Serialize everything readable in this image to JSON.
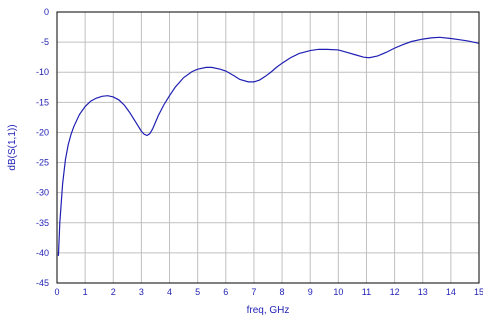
{
  "chart_data": {
    "type": "line",
    "title": "",
    "xlabel": "freq, GHz",
    "ylabel": "dB(S(1,1))",
    "xlim": [
      0,
      15
    ],
    "ylim": [
      -45,
      0
    ],
    "grid": true,
    "x_ticks": [
      "0",
      "1",
      "2",
      "3",
      "4",
      "5",
      "6",
      "7",
      "8",
      "9",
      "10",
      "11",
      "12",
      "13",
      "14",
      "15"
    ],
    "y_ticks": [
      "0",
      "-5",
      "-10",
      "-15",
      "-20",
      "-25",
      "-30",
      "-35",
      "-40",
      "-45"
    ],
    "colors": {
      "line": "#1f1fb4",
      "text": "#1f1fb4",
      "grid": "#c0c0c0",
      "frame": "#000000"
    },
    "series": [
      {
        "x": [
          0.05,
          0.1,
          0.2,
          0.3,
          0.4,
          0.5,
          0.6,
          0.8,
          1.0,
          1.2,
          1.4,
          1.6,
          1.8,
          2.0,
          2.2,
          2.4,
          2.6,
          2.8,
          3.0,
          3.1,
          3.2,
          3.3,
          3.4,
          3.5,
          3.6,
          3.8,
          4.0,
          4.2,
          4.5,
          4.8,
          5.0,
          5.3,
          5.5,
          5.8,
          6.0,
          6.3,
          6.5,
          6.8,
          7.0,
          7.2,
          7.4,
          7.6,
          7.8,
          8.0,
          8.3,
          8.6,
          9.0,
          9.3,
          9.6,
          10.0,
          10.3,
          10.6,
          10.9,
          11.1,
          11.4,
          11.7,
          12.0,
          12.3,
          12.6,
          13.0,
          13.3,
          13.6,
          14.0,
          14.3,
          14.6,
          15.0
        ],
        "y": [
          -40.5,
          -35.0,
          -28.5,
          -24.5,
          -22.0,
          -20.3,
          -19.0,
          -17.0,
          -15.7,
          -14.8,
          -14.3,
          -14.0,
          -13.9,
          -14.1,
          -14.6,
          -15.5,
          -16.8,
          -18.3,
          -19.8,
          -20.3,
          -20.5,
          -20.2,
          -19.4,
          -18.3,
          -17.2,
          -15.4,
          -13.9,
          -12.5,
          -10.9,
          -9.9,
          -9.5,
          -9.2,
          -9.2,
          -9.5,
          -9.8,
          -10.6,
          -11.2,
          -11.6,
          -11.6,
          -11.3,
          -10.7,
          -10.0,
          -9.2,
          -8.5,
          -7.6,
          -6.9,
          -6.4,
          -6.2,
          -6.2,
          -6.3,
          -6.7,
          -7.1,
          -7.5,
          -7.6,
          -7.3,
          -6.7,
          -6.0,
          -5.4,
          -4.9,
          -4.5,
          -4.3,
          -4.2,
          -4.4,
          -4.6,
          -4.8,
          -5.2
        ]
      }
    ]
  }
}
